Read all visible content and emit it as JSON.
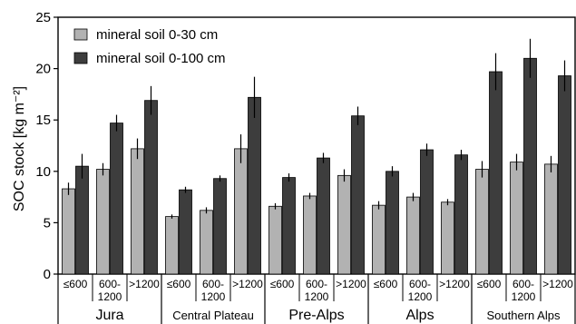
{
  "chart_data": {
    "type": "bar",
    "title": "",
    "ylabel": "SOC stock [kg m⁻²]",
    "ylim": [
      0,
      25
    ],
    "yticks": [
      0,
      5,
      10,
      15,
      20,
      25
    ],
    "grid": false,
    "legend_position": "top-left",
    "groups": [
      "Jura",
      "Central Plateau",
      "Pre-Alps",
      "Alps",
      "Southern Alps"
    ],
    "categories": [
      "≤600",
      "600-\n1200",
      ">1200"
    ],
    "series": [
      {
        "name": "mineral soil 0-30 cm",
        "color": "#b2b2b2",
        "values": [
          [
            8.3,
            10.2,
            12.2
          ],
          [
            5.6,
            6.2,
            12.2
          ],
          [
            6.6,
            7.6,
            9.6
          ],
          [
            6.7,
            7.5,
            7.0
          ],
          [
            10.2,
            10.9,
            10.7
          ]
        ],
        "errors": [
          [
            0.6,
            0.6,
            1.0
          ],
          [
            0.2,
            0.3,
            1.4
          ],
          [
            0.3,
            0.3,
            0.6
          ],
          [
            0.4,
            0.4,
            0.3
          ],
          [
            0.8,
            0.8,
            0.8
          ]
        ]
      },
      {
        "name": "mineral soil 0-100 cm",
        "color": "#3d3d3d",
        "values": [
          [
            10.5,
            14.7,
            16.9
          ],
          [
            8.2,
            9.3,
            17.2
          ],
          [
            9.4,
            11.3,
            15.4
          ],
          [
            10.0,
            12.1,
            11.6
          ],
          [
            19.7,
            21.0,
            19.3
          ]
        ],
        "errors": [
          [
            1.2,
            0.8,
            1.4
          ],
          [
            0.3,
            0.3,
            2.0
          ],
          [
            0.4,
            0.5,
            0.9
          ],
          [
            0.5,
            0.6,
            0.5
          ],
          [
            1.8,
            1.9,
            1.5
          ]
        ]
      }
    ]
  }
}
